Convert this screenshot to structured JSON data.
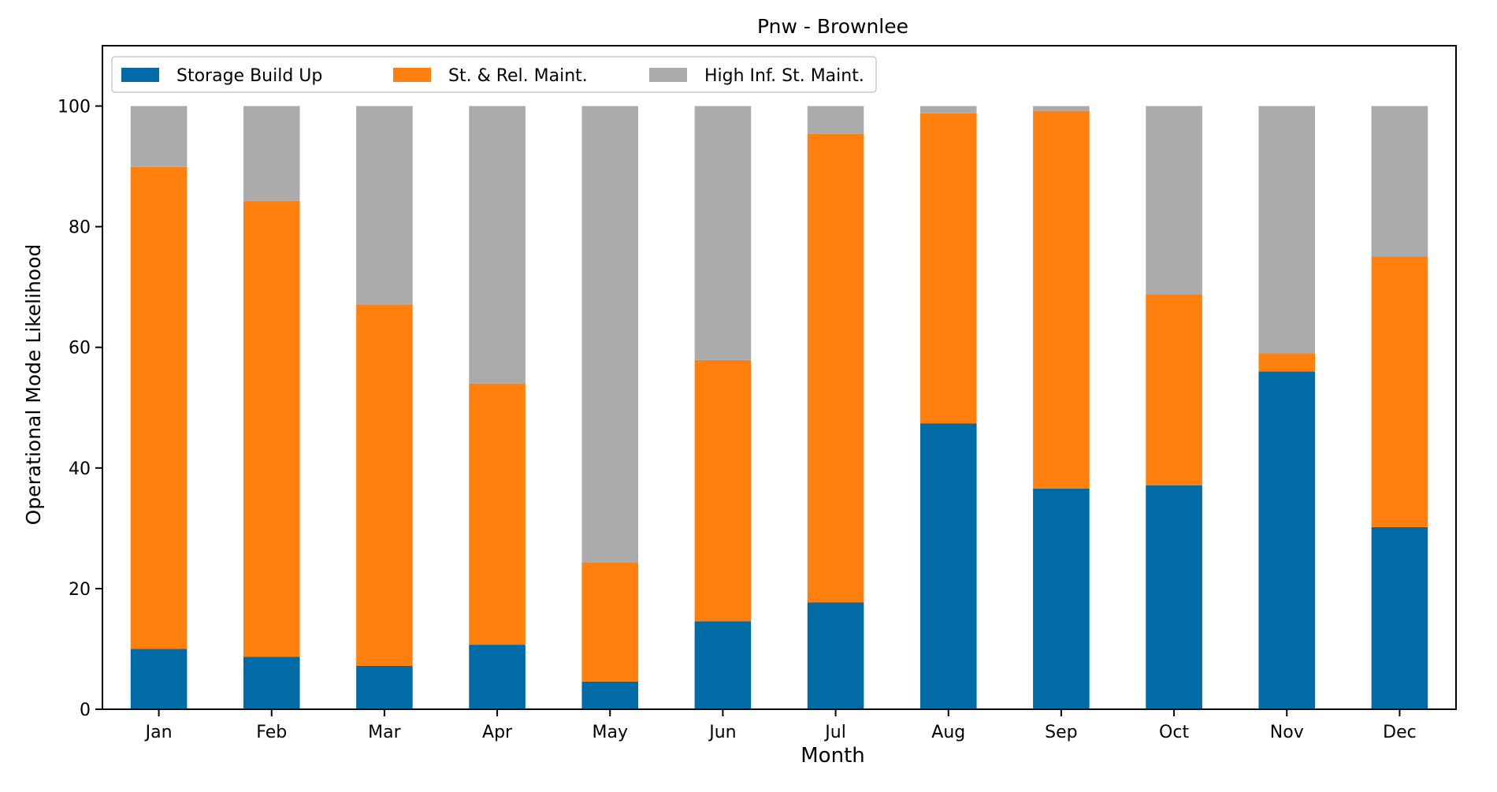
{
  "chart_data": {
    "type": "bar",
    "stacked": true,
    "title": "Pnw - Brownlee",
    "xlabel": "Month",
    "ylabel": "Operational Mode Likelihood",
    "ylim": [
      0,
      110
    ],
    "yticks": [
      0,
      20,
      40,
      60,
      80,
      100
    ],
    "grid": false,
    "legend_position": "top-left",
    "legend_columns": 3,
    "categories": [
      "Jan",
      "Feb",
      "Mar",
      "Apr",
      "May",
      "Jun",
      "Jul",
      "Aug",
      "Sep",
      "Oct",
      "Nov",
      "Dec"
    ],
    "series": [
      {
        "name": "Storage Build Up",
        "color": "#006BA4",
        "values": [
          10.0,
          8.7,
          7.2,
          10.7,
          4.6,
          14.6,
          17.7,
          47.4,
          36.6,
          37.1,
          56.0,
          30.2
        ]
      },
      {
        "name": "St. & Rel. Maint.",
        "color": "#FF800E",
        "values": [
          79.9,
          75.6,
          59.9,
          43.3,
          19.7,
          43.3,
          77.7,
          51.4,
          62.6,
          31.7,
          3.0,
          44.9
        ]
      },
      {
        "name": "High Inf. St. Maint.",
        "color": "#ABABAB",
        "values": [
          10.1,
          15.7,
          32.9,
          46.0,
          75.7,
          42.1,
          4.6,
          1.2,
          0.8,
          31.2,
          41.0,
          24.9
        ]
      }
    ]
  }
}
